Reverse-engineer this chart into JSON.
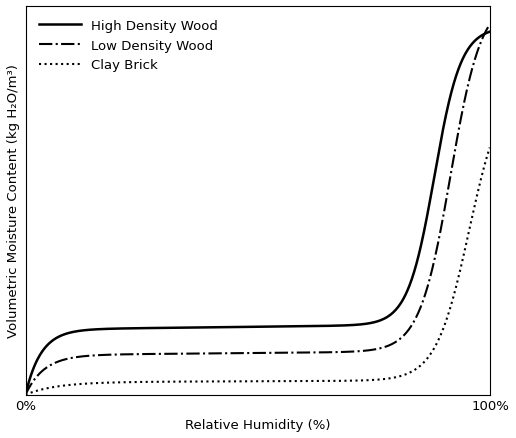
{
  "title": "",
  "xlabel": "Relative Humidity (%)",
  "ylabel": "Volumetric Moisture Content (kg H₂O/m³)",
  "legend": [
    {
      "label": "High Density Wood",
      "linestyle": "-",
      "color": "#000000",
      "linewidth": 1.8
    },
    {
      "label": "Low Density Wood",
      "linestyle": "-.",
      "color": "#000000",
      "linewidth": 1.5
    },
    {
      "label": "Clay Brick",
      "linestyle": ":",
      "color": "#000000",
      "linewidth": 1.5
    }
  ],
  "xtick_labels": [
    "0%",
    "100%"
  ],
  "background_color": "#ffffff",
  "legend_fontsize": 9.5,
  "axis_fontsize": 9.5
}
